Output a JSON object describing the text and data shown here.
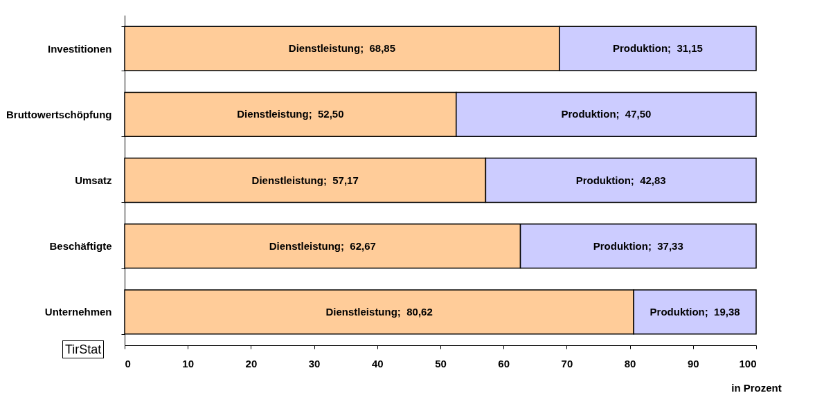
{
  "chart_data": {
    "type": "bar",
    "orientation": "horizontal",
    "stacked": true,
    "xlabel": "in Prozent",
    "categories": [
      "Investitionen",
      "Bruttowertschöpfung",
      "Umsatz",
      "Beschäftigte",
      "Unternehmen"
    ],
    "series": [
      {
        "name": "Dienstleistung",
        "color": "#ffcc99",
        "values": [
          68.85,
          52.5,
          57.17,
          62.67,
          80.62
        ],
        "value_labels": [
          ";  68,85",
          ";  52,50",
          ";  57,17",
          ";  62,67",
          ";  80,62"
        ]
      },
      {
        "name": "Produktion",
        "color": "#ccccff",
        "values": [
          31.15,
          47.5,
          42.83,
          37.33,
          19.38
        ],
        "value_labels": [
          ";  31,15",
          ";  47,50",
          ";  42,83",
          ";  37,33",
          ";  19,38"
        ]
      }
    ],
    "xlim": [
      0,
      100
    ],
    "xticks": [
      0,
      10,
      20,
      30,
      40,
      50,
      60,
      70,
      80,
      90,
      100
    ],
    "grid": false,
    "legend": false,
    "annotations": [
      "TirStat"
    ]
  }
}
